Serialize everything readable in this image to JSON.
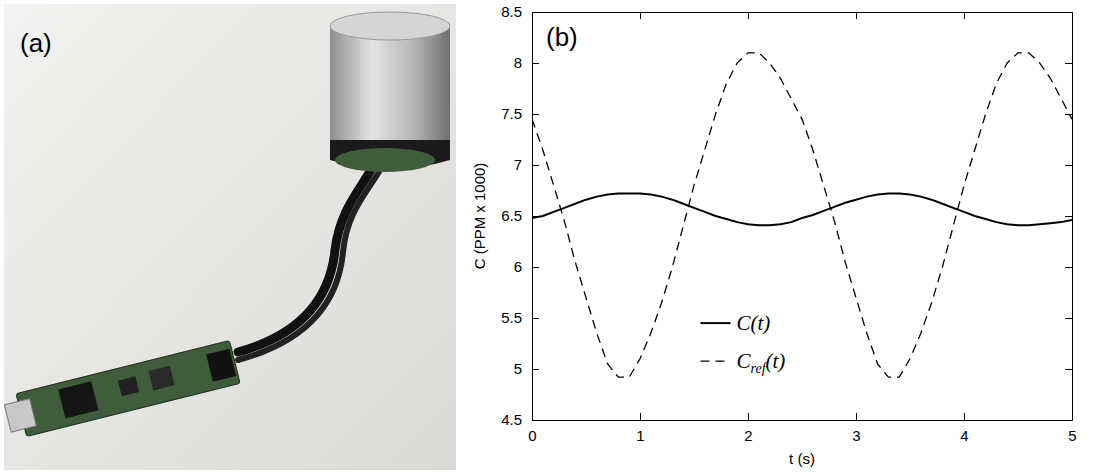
{
  "photo": {
    "label": "(a)"
  },
  "chart_data": {
    "type": "line",
    "panel_label": "(b)",
    "x_label": "t (s)",
    "y_label": "C (PPM x 1000)",
    "xlim": [
      0,
      5
    ],
    "xticks": [
      0,
      1,
      2,
      3,
      4,
      5
    ],
    "ylim": [
      4.5,
      8.5
    ],
    "yticks": [
      4.5,
      5,
      5.5,
      6,
      6.5,
      7,
      7.5,
      8,
      8.5
    ],
    "grid": false,
    "legend": "bottom",
    "x": [
      0,
      0.1,
      0.2,
      0.3,
      0.4,
      0.5,
      0.6,
      0.7,
      0.8,
      0.9,
      1,
      1.1,
      1.2,
      1.3,
      1.4,
      1.5,
      1.6,
      1.7,
      1.8,
      1.9,
      2,
      2.1,
      2.2,
      2.3,
      2.4,
      2.5,
      2.6,
      2.7,
      2.8,
      2.9,
      3,
      3.1,
      3.2,
      3.3,
      3.4,
      3.5,
      3.6,
      3.7,
      3.8,
      3.9,
      4,
      4.1,
      4.2,
      4.3,
      4.4,
      4.5,
      4.6,
      4.7,
      4.8,
      4.9,
      5
    ],
    "series": [
      {
        "name": "C(t)",
        "color": "#000000",
        "line_style": "solid",
        "values": [
          6.48,
          6.5,
          6.54,
          6.58,
          6.62,
          6.66,
          6.69,
          6.71,
          6.72,
          6.72,
          6.72,
          6.71,
          6.69,
          6.66,
          6.62,
          6.58,
          6.54,
          6.5,
          6.47,
          6.44,
          6.42,
          6.41,
          6.41,
          6.42,
          6.44,
          6.48,
          6.51,
          6.55,
          6.59,
          6.63,
          6.66,
          6.69,
          6.71,
          6.72,
          6.72,
          6.71,
          6.69,
          6.66,
          6.62,
          6.58,
          6.54,
          6.5,
          6.47,
          6.44,
          6.42,
          6.41,
          6.41,
          6.42,
          6.43,
          6.44,
          6.46
        ]
      },
      {
        "name": "Cref(t)",
        "color": "#000000",
        "line_style": "dashed",
        "values": [
          7.45,
          7.15,
          6.8,
          6.45,
          6.05,
          5.7,
          5.35,
          5.05,
          4.92,
          4.92,
          5.1,
          5.35,
          5.65,
          6.0,
          6.4,
          6.8,
          7.15,
          7.5,
          7.8,
          8.0,
          8.1,
          8.1,
          8.0,
          7.85,
          7.65,
          7.45,
          7.15,
          6.8,
          6.45,
          6.05,
          5.7,
          5.35,
          5.05,
          4.92,
          4.92,
          5.1,
          5.35,
          5.65,
          6.0,
          6.4,
          6.8,
          7.15,
          7.5,
          7.8,
          8.0,
          8.1,
          8.1,
          8.0,
          7.85,
          7.65,
          7.45
        ]
      }
    ]
  }
}
